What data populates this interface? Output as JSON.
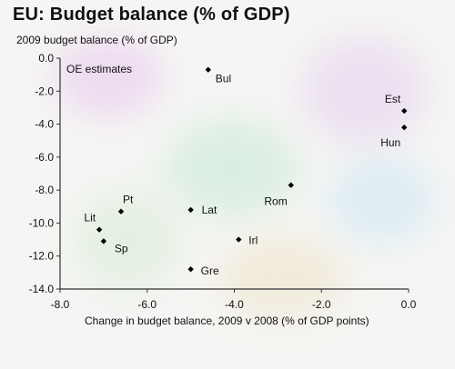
{
  "chart_data": {
    "type": "scatter",
    "title": "EU: Budget balance (% of GDP)",
    "ylabel": "2009 budget balance (% of GDP)",
    "xlabel": "Change in budget balance, 2009 v 2008 (% of GDP points)",
    "annotation": "OE estimates",
    "xlim": [
      -8.0,
      0.0
    ],
    "ylim": [
      -14.0,
      0.0
    ],
    "x_ticks": [
      "-8.0",
      "-6.0",
      "-4.0",
      "-2.0",
      "0.0"
    ],
    "y_ticks": [
      "0.0",
      "-2.0",
      "-4.0",
      "-6.0",
      "-8.0",
      "-10.0",
      "-12.0",
      "-14.0"
    ],
    "grid": false,
    "legend": "none",
    "marker_color": "#000000",
    "points": [
      {
        "label": "Bul",
        "x": -4.6,
        "y": -0.7
      },
      {
        "label": "Est",
        "x": -0.1,
        "y": -3.2
      },
      {
        "label": "Hun",
        "x": -0.1,
        "y": -4.2
      },
      {
        "label": "Rom",
        "x": -2.7,
        "y": -7.7
      },
      {
        "label": "Pt",
        "x": -6.6,
        "y": -9.3
      },
      {
        "label": "Lat",
        "x": -5.0,
        "y": -9.2
      },
      {
        "label": "Lit",
        "x": -7.1,
        "y": -10.4
      },
      {
        "label": "Sp",
        "x": -7.0,
        "y": -11.1
      },
      {
        "label": "Irl",
        "x": -3.9,
        "y": -11.0
      },
      {
        "label": "Gre",
        "x": -5.0,
        "y": -12.8
      }
    ]
  }
}
